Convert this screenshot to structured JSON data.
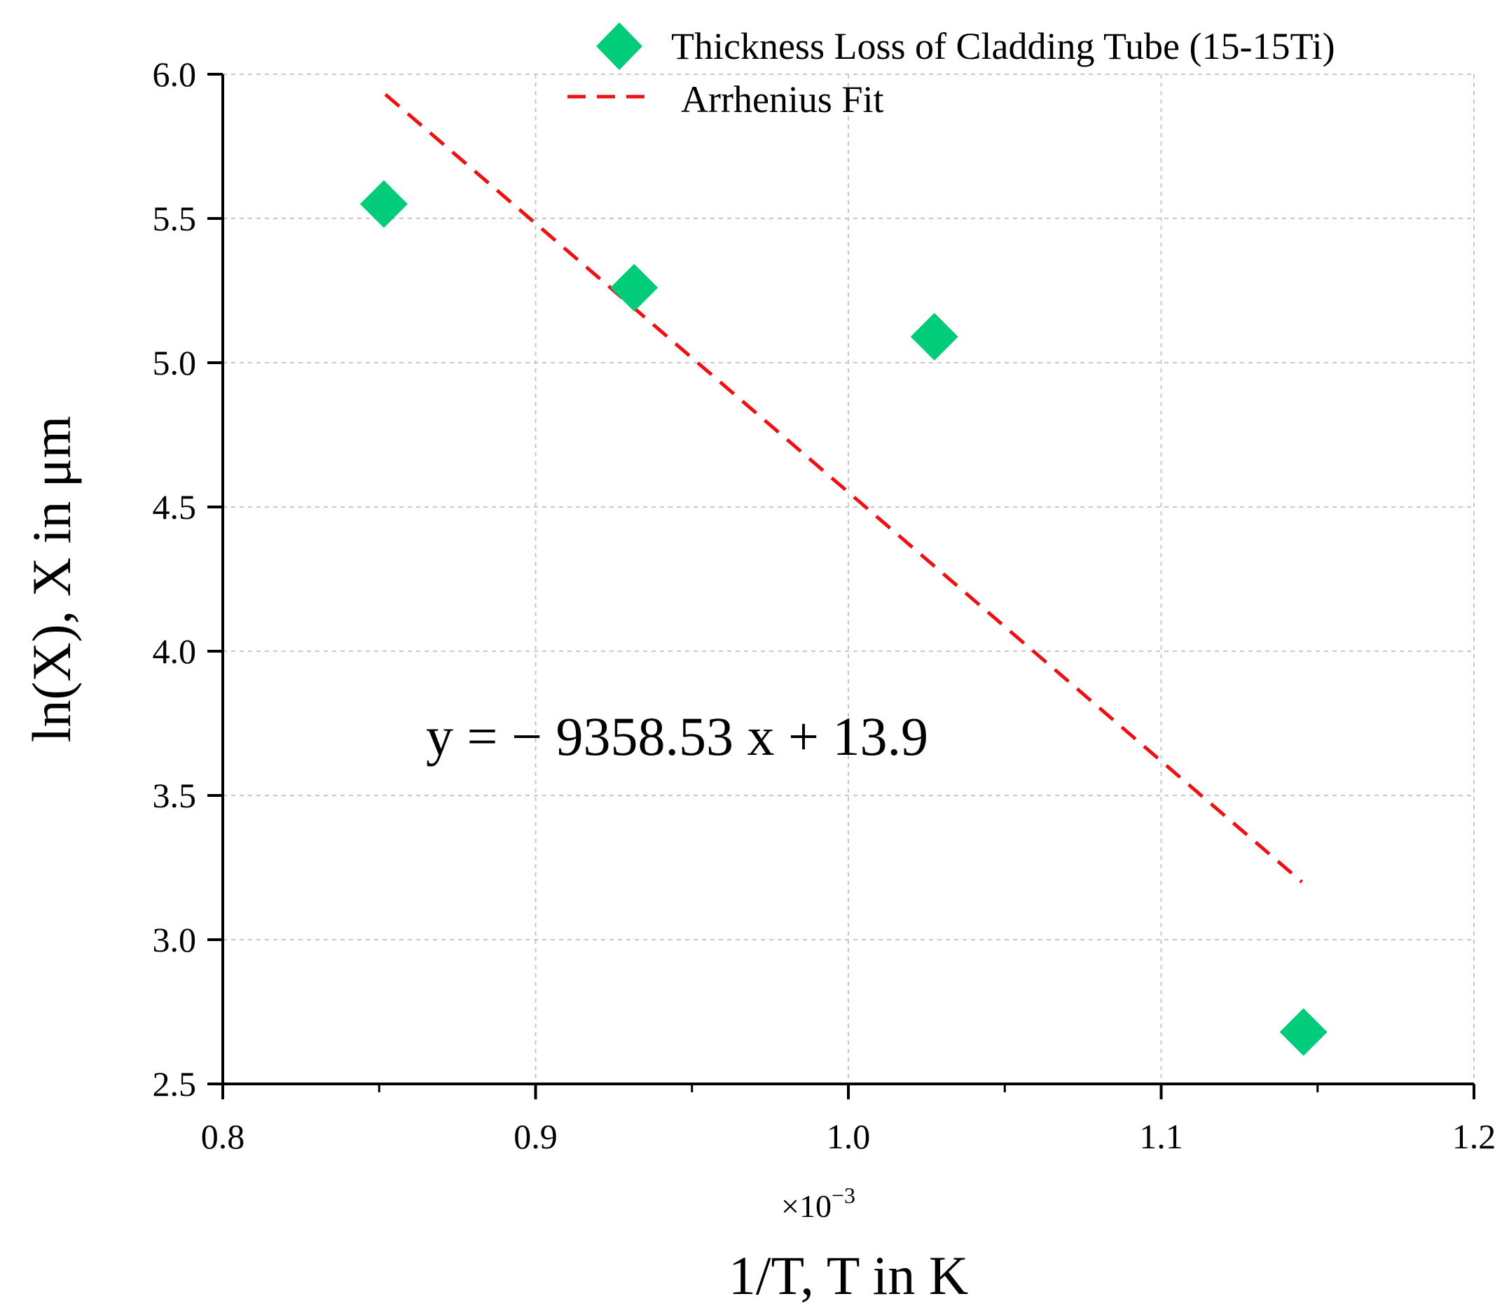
{
  "chart_data": {
    "type": "scatter",
    "xlabel": "1/T, T in K",
    "ylabel": "ln(X), X in μm",
    "x_multiplier": {
      "base": "×10",
      "exponent": "−3"
    },
    "xlim": [
      0.8,
      1.2
    ],
    "ylim": [
      2.5,
      6.0
    ],
    "x_ticks": [
      0.8,
      0.9,
      1.0,
      1.1,
      1.2
    ],
    "x_tick_labels": [
      "0.8",
      "0.9",
      "1.0",
      "1.1",
      "1.2"
    ],
    "x_minor_ticks": [
      0.85,
      0.95,
      1.05,
      1.15
    ],
    "y_ticks": [
      2.5,
      3.0,
      3.5,
      4.0,
      4.5,
      5.0,
      5.5,
      6.0
    ],
    "y_tick_labels": [
      "2.5",
      "3.0",
      "3.5",
      "4.0",
      "4.5",
      "5.0",
      "5.5",
      "6.0"
    ],
    "grid": true,
    "legend_position": "top-right",
    "series": [
      {
        "name": "Thickness Loss of Cladding Tube (15-15Ti)",
        "kind": "scatter",
        "marker": "diamond",
        "color": "#00cc7a",
        "x": [
          0.8515,
          0.9315,
          1.0275,
          1.1455
        ],
        "y": [
          5.55,
          5.26,
          5.09,
          2.68
        ]
      },
      {
        "name": "Arrhenius Fit",
        "kind": "line",
        "style": "dashed",
        "color": "#ee1111",
        "x": [
          0.852,
          1.145
        ],
        "y": [
          5.93,
          3.2
        ]
      }
    ],
    "annotation": {
      "text": "y = − 9358.53 x + 13.9",
      "x": 0.99,
      "y": 3.7
    }
  }
}
